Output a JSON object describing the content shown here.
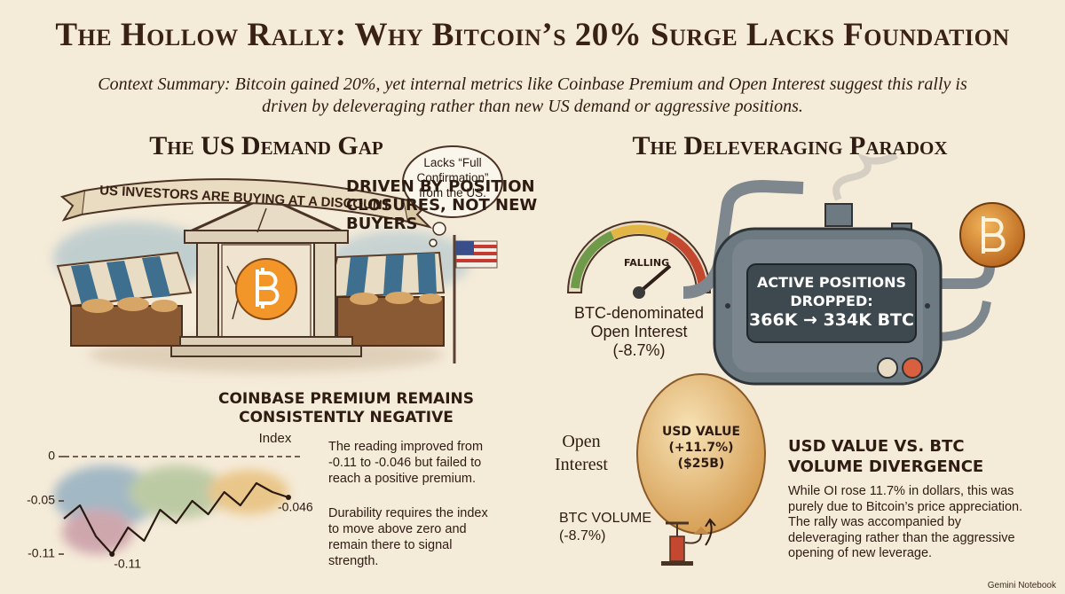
{
  "header": {
    "title": "The Hollow Rally: Why Bitcoin’s 20% Surge Lacks Foundation",
    "summary": "Context Summary: Bitcoin gained 20%, yet internal metrics like Coinbase Premium and Open Interest suggest this rally is driven by deleveraging rather than new US demand or aggressive positions."
  },
  "left": {
    "title": "The US Demand Gap",
    "banner": "US INVESTORS ARE BUYING AT A DISCOUNT",
    "bubble": "Lacks “Full Confirmation” from the US.",
    "chart": {
      "heading": "COINBASE PREMIUM REMAINS CONSISTENTLY NEGATIVE",
      "axis_label": "Index",
      "ylim": [
        -0.12,
        0.01
      ],
      "yticks": [
        0,
        -0.05,
        -0.11
      ],
      "values": [
        -0.07,
        -0.055,
        -0.09,
        -0.11,
        -0.08,
        -0.095,
        -0.06,
        -0.075,
        -0.05,
        -0.065,
        -0.04,
        -0.055,
        -0.03,
        -0.04,
        -0.046
      ]
    },
    "notes": [
      "The reading improved from -0.11 to -0.046 but failed to reach a positive premium.",
      "Durability requires the index to move above zero and remain there to signal strength."
    ]
  },
  "right": {
    "title": "The Deleveraging Paradox",
    "subtitle": "DRIVEN BY POSITION CLOSURES, NOT NEW BUYERS",
    "gauge_label": "FALLING",
    "gauge_caption": "BTC-denominated Open Interest (-8.7%)",
    "tank_label": "ACTIVE POSITIONS DROPPED:",
    "tank_value": "366K → 334K BTC",
    "balloon_caption": "Open Interest",
    "balloon_label": "USD VALUE (+11.7%) ($25B)",
    "pump_label": "BTC VOLUME (-8.7%)",
    "divergence": {
      "heading": "USD VALUE VS. BTC VOLUME DIVERGENCE",
      "text": "While OI rose 11.7% in dollars, this was purely due to Bitcoin’s price appreciation. The rally was accompanied by deleveraging rather than the aggressive opening of new leverage."
    }
  },
  "footer": {
    "brand": "Gemini Notebook"
  }
}
